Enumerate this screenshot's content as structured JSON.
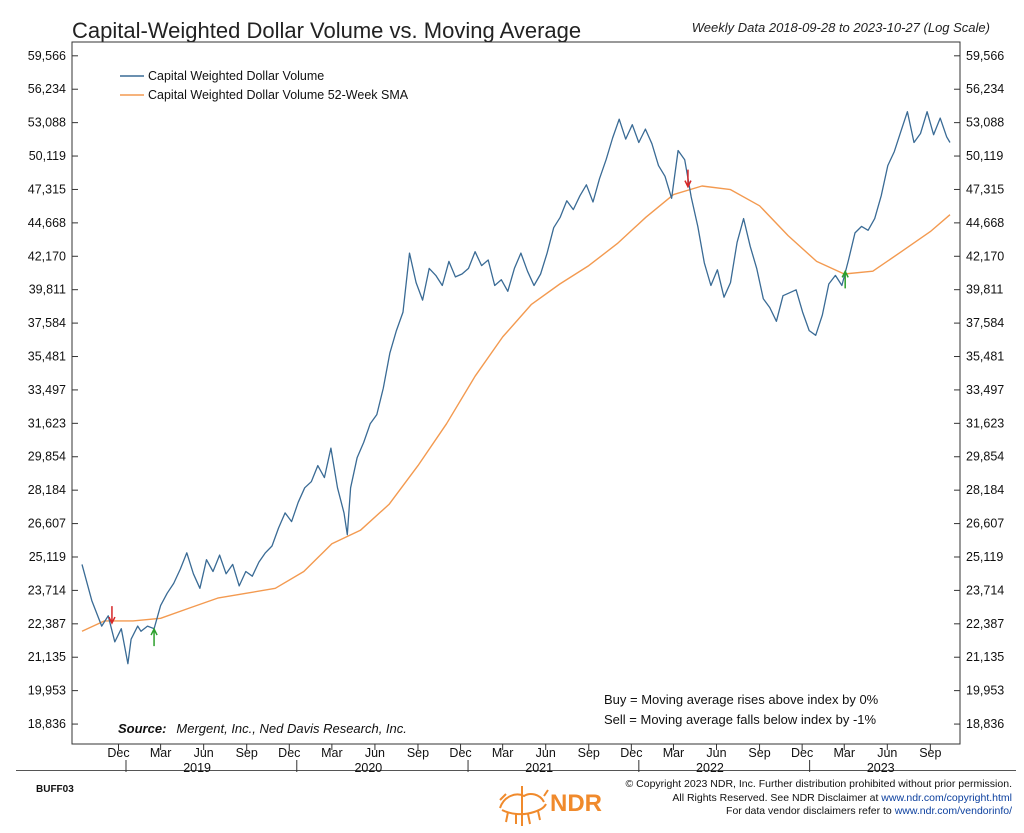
{
  "header": {
    "title": "Capital-Weighted Dollar Volume vs. Moving Average",
    "subtitle": "Weekly Data 2018-09-28 to 2023-10-27 (Log Scale)"
  },
  "source": {
    "label": "Source:",
    "text": "Mergent, Inc., Ned Davis Research, Inc."
  },
  "rules": {
    "buy": "Buy = Moving average rises above index by 0%",
    "sell": "Sell = Moving average falls below index by -1%"
  },
  "footer": {
    "code": "BUFF03",
    "line1": "© Copyright 2023 NDR, Inc. Further distribution prohibited without prior permission.",
    "line2_prefix": "All Rights Reserved. See NDR Disclaimer at",
    "line2_link": "www.ndr.com/copyright.html",
    "line3_prefix": "For data vendor disclaimers refer to",
    "line3_link": "www.ndr.com/vendorinfo/",
    "logo_text": "NDR"
  },
  "colors": {
    "index_line": "#3a6b95",
    "sma_line": "#f39a50",
    "buy_arrow": "#2ca02c",
    "sell_arrow": "#d62728",
    "logo": "#f08a2c"
  },
  "chart_data": {
    "type": "line",
    "title": "Capital-Weighted Dollar Volume vs. Moving Average",
    "y_scale": "log",
    "ylim": [
      18200,
      61000
    ],
    "xlim": [
      "2018-09-28",
      "2023-10-27"
    ],
    "y_ticks": [
      59566,
      56234,
      53088,
      50119,
      47315,
      44668,
      42170,
      39811,
      37584,
      35481,
      33497,
      31623,
      29854,
      28184,
      26607,
      25119,
      23714,
      22387,
      21135,
      19953,
      18836
    ],
    "x_ticks": [
      {
        "label": "Dec",
        "date": "2018-12-15"
      },
      {
        "label": "Mar",
        "date": "2019-03-15"
      },
      {
        "label": "Jun",
        "date": "2019-06-15"
      },
      {
        "label": "Sep",
        "date": "2019-09-15"
      },
      {
        "label": "Dec",
        "date": "2019-12-15"
      },
      {
        "label": "Mar",
        "date": "2020-03-15"
      },
      {
        "label": "Jun",
        "date": "2020-06-15"
      },
      {
        "label": "Sep",
        "date": "2020-09-15"
      },
      {
        "label": "Dec",
        "date": "2020-12-15"
      },
      {
        "label": "Mar",
        "date": "2021-03-15"
      },
      {
        "label": "Jun",
        "date": "2021-06-15"
      },
      {
        "label": "Sep",
        "date": "2021-09-15"
      },
      {
        "label": "Dec",
        "date": "2021-12-15"
      },
      {
        "label": "Mar",
        "date": "2022-03-15"
      },
      {
        "label": "Jun",
        "date": "2022-06-15"
      },
      {
        "label": "Sep",
        "date": "2022-09-15"
      },
      {
        "label": "Dec",
        "date": "2022-12-15"
      },
      {
        "label": "Mar",
        "date": "2023-03-15"
      },
      {
        "label": "Jun",
        "date": "2023-06-15"
      },
      {
        "label": "Sep",
        "date": "2023-09-15"
      }
    ],
    "year_labels": [
      {
        "label": "2019",
        "date": "2019-06-01"
      },
      {
        "label": "2020",
        "date": "2020-06-01"
      },
      {
        "label": "2021",
        "date": "2021-06-01"
      },
      {
        "label": "2022",
        "date": "2022-06-01"
      },
      {
        "label": "2023",
        "date": "2023-06-01"
      }
    ],
    "legend_position": "top-left",
    "series": [
      {
        "name": "Capital Weighted Dollar Volume",
        "color": "#3a6b95",
        "points": [
          [
            "2018-09-28",
            24800
          ],
          [
            "2018-10-19",
            23300
          ],
          [
            "2018-11-09",
            22300
          ],
          [
            "2018-11-23",
            22700
          ],
          [
            "2018-12-07",
            21700
          ],
          [
            "2018-12-21",
            22200
          ],
          [
            "2019-01-04",
            20900
          ],
          [
            "2019-01-11",
            21800
          ],
          [
            "2019-01-25",
            22300
          ],
          [
            "2019-02-01",
            22100
          ],
          [
            "2019-02-15",
            22300
          ],
          [
            "2019-03-01",
            22200
          ],
          [
            "2019-03-15",
            23100
          ],
          [
            "2019-03-29",
            23600
          ],
          [
            "2019-04-12",
            24000
          ],
          [
            "2019-04-26",
            24600
          ],
          [
            "2019-05-10",
            25300
          ],
          [
            "2019-05-24",
            24400
          ],
          [
            "2019-06-07",
            23800
          ],
          [
            "2019-06-21",
            25000
          ],
          [
            "2019-07-05",
            24500
          ],
          [
            "2019-07-19",
            25200
          ],
          [
            "2019-08-02",
            24400
          ],
          [
            "2019-08-16",
            24800
          ],
          [
            "2019-08-30",
            23900
          ],
          [
            "2019-09-13",
            24500
          ],
          [
            "2019-09-27",
            24300
          ],
          [
            "2019-10-11",
            24900
          ],
          [
            "2019-10-25",
            25300
          ],
          [
            "2019-11-08",
            25600
          ],
          [
            "2019-11-22",
            26400
          ],
          [
            "2019-12-06",
            27100
          ],
          [
            "2019-12-20",
            26700
          ],
          [
            "2020-01-03",
            27600
          ],
          [
            "2020-01-17",
            28300
          ],
          [
            "2020-01-31",
            28600
          ],
          [
            "2020-02-14",
            29400
          ],
          [
            "2020-02-28",
            28800
          ],
          [
            "2020-03-13",
            30300
          ],
          [
            "2020-03-27",
            28300
          ],
          [
            "2020-04-10",
            27100
          ],
          [
            "2020-04-17",
            26100
          ],
          [
            "2020-04-24",
            28300
          ],
          [
            "2020-05-08",
            29800
          ],
          [
            "2020-05-22",
            30600
          ],
          [
            "2020-06-05",
            31600
          ],
          [
            "2020-06-19",
            32100
          ],
          [
            "2020-07-03",
            33600
          ],
          [
            "2020-07-17",
            35700
          ],
          [
            "2020-07-31",
            37100
          ],
          [
            "2020-08-14",
            38300
          ],
          [
            "2020-08-28",
            42400
          ],
          [
            "2020-09-11",
            40300
          ],
          [
            "2020-09-25",
            39100
          ],
          [
            "2020-10-09",
            41300
          ],
          [
            "2020-10-23",
            40800
          ],
          [
            "2020-11-06",
            40100
          ],
          [
            "2020-11-20",
            41800
          ],
          [
            "2020-12-04",
            40700
          ],
          [
            "2020-12-18",
            40900
          ],
          [
            "2021-01-01",
            41300
          ],
          [
            "2021-01-15",
            42500
          ],
          [
            "2021-01-29",
            41500
          ],
          [
            "2021-02-12",
            41900
          ],
          [
            "2021-02-26",
            40100
          ],
          [
            "2021-03-12",
            40500
          ],
          [
            "2021-03-26",
            39700
          ],
          [
            "2021-04-09",
            41300
          ],
          [
            "2021-04-23",
            42400
          ],
          [
            "2021-05-07",
            41100
          ],
          [
            "2021-05-21",
            40100
          ],
          [
            "2021-06-04",
            40900
          ],
          [
            "2021-06-18",
            42400
          ],
          [
            "2021-07-02",
            44300
          ],
          [
            "2021-07-16",
            45100
          ],
          [
            "2021-07-30",
            46400
          ],
          [
            "2021-08-13",
            45700
          ],
          [
            "2021-08-27",
            46800
          ],
          [
            "2021-09-10",
            47700
          ],
          [
            "2021-09-24",
            46300
          ],
          [
            "2021-10-08",
            48200
          ],
          [
            "2021-10-22",
            49800
          ],
          [
            "2021-11-05",
            51700
          ],
          [
            "2021-11-19",
            53400
          ],
          [
            "2021-12-03",
            51600
          ],
          [
            "2021-12-17",
            52900
          ],
          [
            "2021-12-31",
            51300
          ],
          [
            "2022-01-14",
            52500
          ],
          [
            "2022-01-28",
            51200
          ],
          [
            "2022-02-11",
            49300
          ],
          [
            "2022-02-25",
            48400
          ],
          [
            "2022-03-11",
            46600
          ],
          [
            "2022-03-25",
            50600
          ],
          [
            "2022-04-08",
            49800
          ],
          [
            "2022-04-22",
            46700
          ],
          [
            "2022-05-06",
            44400
          ],
          [
            "2022-05-20",
            41700
          ],
          [
            "2022-06-03",
            40100
          ],
          [
            "2022-06-17",
            41200
          ],
          [
            "2022-07-01",
            39300
          ],
          [
            "2022-07-15",
            40300
          ],
          [
            "2022-07-29",
            43200
          ],
          [
            "2022-08-12",
            45000
          ],
          [
            "2022-08-26",
            42900
          ],
          [
            "2022-09-09",
            41300
          ],
          [
            "2022-09-23",
            39200
          ],
          [
            "2022-10-07",
            38600
          ],
          [
            "2022-10-21",
            37700
          ],
          [
            "2022-11-04",
            39400
          ],
          [
            "2022-11-18",
            39600
          ],
          [
            "2022-12-02",
            39800
          ],
          [
            "2022-12-16",
            38300
          ],
          [
            "2022-12-30",
            37100
          ],
          [
            "2023-01-13",
            36800
          ],
          [
            "2023-01-27",
            38100
          ],
          [
            "2023-02-10",
            40200
          ],
          [
            "2023-02-24",
            40800
          ],
          [
            "2023-03-10",
            40100
          ],
          [
            "2023-03-24",
            41900
          ],
          [
            "2023-04-07",
            43900
          ],
          [
            "2023-04-21",
            44400
          ],
          [
            "2023-05-05",
            44100
          ],
          [
            "2023-05-19",
            45000
          ],
          [
            "2023-06-02",
            46800
          ],
          [
            "2023-06-16",
            49300
          ],
          [
            "2023-06-30",
            50500
          ],
          [
            "2023-07-14",
            52300
          ],
          [
            "2023-07-28",
            54100
          ],
          [
            "2023-08-11",
            51300
          ],
          [
            "2023-08-25",
            52100
          ],
          [
            "2023-09-08",
            54100
          ],
          [
            "2023-09-22",
            52000
          ],
          [
            "2023-10-06",
            53500
          ],
          [
            "2023-10-20",
            51800
          ],
          [
            "2023-10-27",
            51300
          ]
        ]
      },
      {
        "name": "Capital Weighted Dollar Volume 52-Week SMA",
        "color": "#f39a50",
        "points": [
          [
            "2018-09-28",
            22100
          ],
          [
            "2018-11-15",
            22500
          ],
          [
            "2019-01-15",
            22500
          ],
          [
            "2019-03-15",
            22600
          ],
          [
            "2019-05-15",
            23000
          ],
          [
            "2019-07-15",
            23400
          ],
          [
            "2019-09-15",
            23600
          ],
          [
            "2019-11-15",
            23800
          ],
          [
            "2020-01-15",
            24500
          ],
          [
            "2020-03-15",
            25700
          ],
          [
            "2020-05-15",
            26300
          ],
          [
            "2020-07-15",
            27500
          ],
          [
            "2020-09-15",
            29400
          ],
          [
            "2020-11-15",
            31600
          ],
          [
            "2021-01-15",
            34300
          ],
          [
            "2021-03-15",
            36700
          ],
          [
            "2021-05-15",
            38800
          ],
          [
            "2021-07-15",
            40200
          ],
          [
            "2021-09-15",
            41500
          ],
          [
            "2021-11-15",
            43100
          ],
          [
            "2022-01-15",
            45100
          ],
          [
            "2022-03-15",
            46900
          ],
          [
            "2022-05-15",
            47600
          ],
          [
            "2022-07-15",
            47300
          ],
          [
            "2022-09-15",
            46000
          ],
          [
            "2022-11-15",
            43700
          ],
          [
            "2023-01-15",
            41800
          ],
          [
            "2023-03-15",
            40900
          ],
          [
            "2023-05-15",
            41100
          ],
          [
            "2023-07-15",
            42500
          ],
          [
            "2023-09-15",
            44000
          ],
          [
            "2023-10-27",
            45300
          ]
        ]
      }
    ],
    "signals": [
      {
        "type": "sell",
        "date": "2018-12-01",
        "value": 22300
      },
      {
        "type": "buy",
        "date": "2019-03-01",
        "value": 22300
      },
      {
        "type": "sell",
        "date": "2022-04-15",
        "value": 47300
      },
      {
        "type": "buy",
        "date": "2023-03-17",
        "value": 41300
      }
    ]
  }
}
